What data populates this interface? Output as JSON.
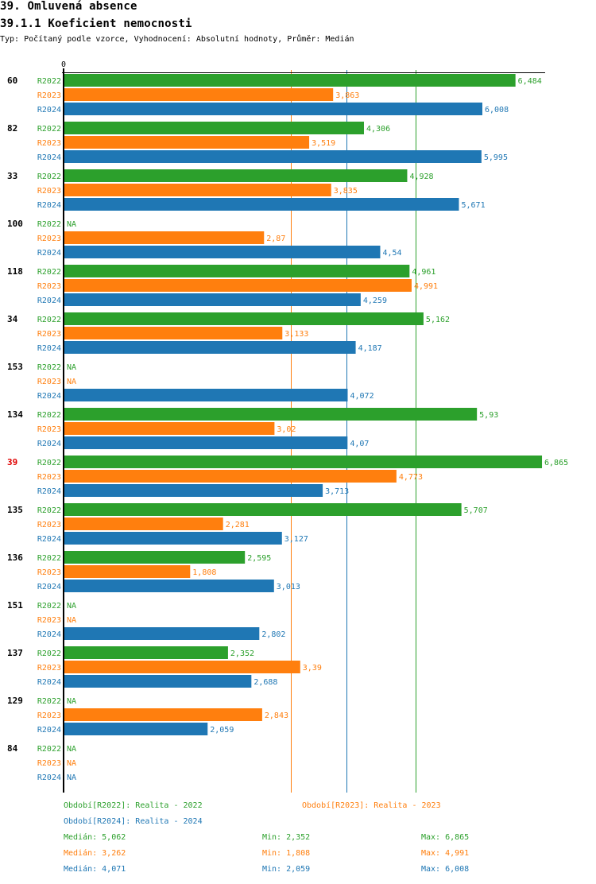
{
  "header": {
    "title": "39. Omluvená absence",
    "subtitle": "39.1.1 Koeficient nemocnosti",
    "description": "Typ: Počítaný podle vzorce, Vyhodnocení: Absolutní hodnoty, Průměr: Medián"
  },
  "colors": {
    "R2022": "#2ca02c",
    "R2023": "#ff7f0e",
    "R2024": "#1f77b4",
    "highlight_label": "#e00000",
    "axis": "#000000"
  },
  "chart_data": {
    "type": "bar",
    "orientation": "horizontal",
    "title": "39.1.1 Koeficient nemocnosti",
    "xlabel": "",
    "ylabel": "",
    "x_tick_labels": [
      "0"
    ],
    "xlim": [
      0,
      7
    ],
    "grid": false,
    "highlight_category": "39",
    "categories": [
      "60",
      "82",
      "33",
      "100",
      "118",
      "34",
      "153",
      "134",
      "39",
      "135",
      "136",
      "151",
      "137",
      "129",
      "84"
    ],
    "series": [
      {
        "name": "R2022",
        "values": [
          6.484,
          4.306,
          4.928,
          null,
          4.961,
          5.162,
          null,
          5.93,
          6.865,
          5.707,
          2.595,
          null,
          2.352,
          null,
          null
        ],
        "labels": [
          "6,484",
          "4,306",
          "4,928",
          "NA",
          "4,961",
          "5,162",
          "NA",
          "5,93",
          "6,865",
          "5,707",
          "2,595",
          "NA",
          "2,352",
          "NA",
          "NA"
        ]
      },
      {
        "name": "R2023",
        "values": [
          3.863,
          3.519,
          3.835,
          2.87,
          4.991,
          3.133,
          null,
          3.02,
          4.773,
          2.281,
          1.808,
          null,
          3.39,
          2.843,
          null
        ],
        "labels": [
          "3,863",
          "3,519",
          "3,835",
          "2,87",
          "4,991",
          "3,133",
          "NA",
          "3,02",
          "4,773",
          "2,281",
          "1,808",
          "NA",
          "3,39",
          "2,843",
          "NA"
        ]
      },
      {
        "name": "R2024",
        "values": [
          6.008,
          5.995,
          5.671,
          4.54,
          4.259,
          4.187,
          4.072,
          4.07,
          3.713,
          3.127,
          3.013,
          2.802,
          2.688,
          2.059,
          null
        ],
        "labels": [
          "6,008",
          "5,995",
          "5,671",
          "4,54",
          "4,259",
          "4,187",
          "4,072",
          "4,07",
          "3,713",
          "3,127",
          "3,013",
          "2,802",
          "2,688",
          "2,059",
          "NA"
        ]
      }
    ],
    "reference_lines": [
      {
        "series": "R2023",
        "type": "median",
        "value": 3.262
      },
      {
        "series": "R2024",
        "type": "median",
        "value": 4.071
      },
      {
        "series": "R2022",
        "type": "median",
        "value": 5.062
      }
    ],
    "legend": {
      "placement": "bottom",
      "entries": [
        {
          "series": "R2022",
          "text": "Období[R2022]: Realita - 2022"
        },
        {
          "series": "R2023",
          "text": "Období[R2023]: Realita - 2023"
        },
        {
          "series": "R2024",
          "text": "Období[R2024]: Realita - 2024"
        }
      ]
    },
    "statistics": [
      {
        "series": "R2022",
        "median": "Medián: 5,062",
        "min": "Min: 2,352",
        "max": "Max: 6,865"
      },
      {
        "series": "R2023",
        "median": "Medián: 3,262",
        "min": "Min: 1,808",
        "max": "Max: 4,991"
      },
      {
        "series": "R2024",
        "median": "Medián: 4,071",
        "min": "Min: 2,059",
        "max": "Max: 6,008"
      }
    ]
  }
}
